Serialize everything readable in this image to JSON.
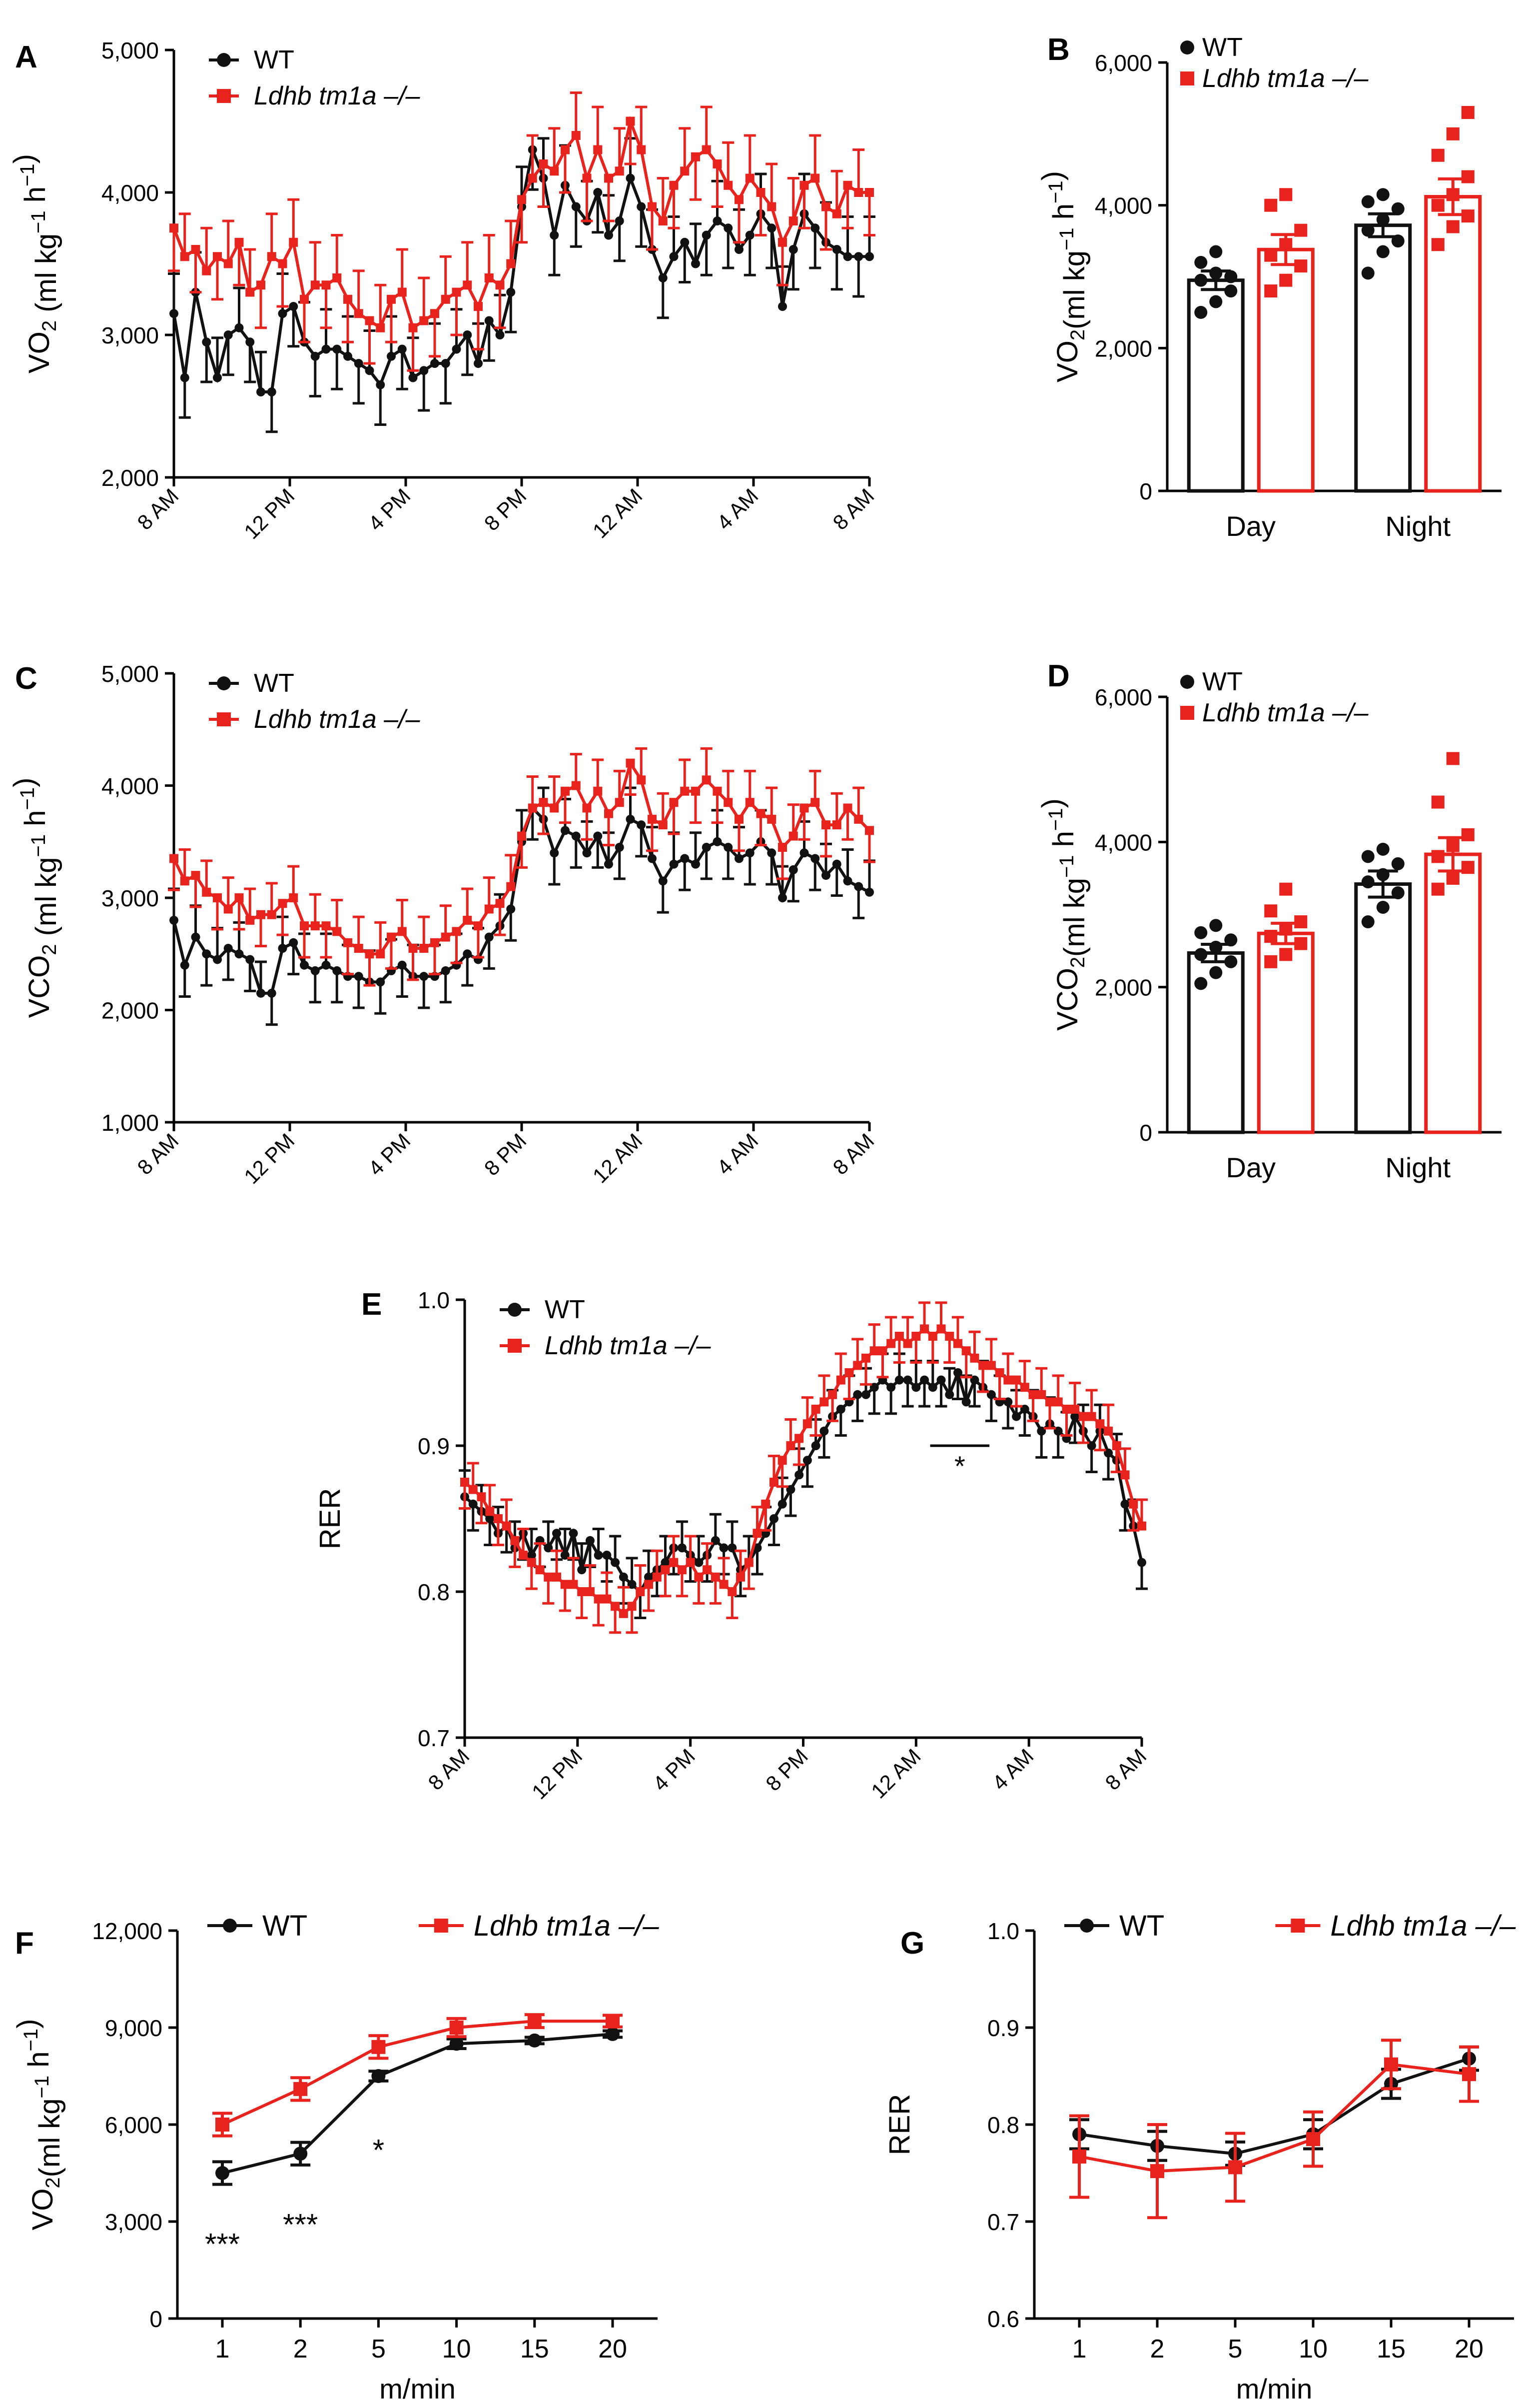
{
  "colors": {
    "wt": "#111111",
    "ko": "#e8221c",
    "axis": "#000000"
  },
  "legend": {
    "wt": "WT",
    "ko": "Ldhb tm1a –/–"
  },
  "time_ticks": [
    "8 AM",
    "12 PM",
    "4 PM",
    "8 PM",
    "12 AM",
    "4 AM",
    "8 AM"
  ],
  "chart_data": [
    {
      "panel": "A",
      "type": "line",
      "ylabel": "VO2 (ml kg−1 h−1)",
      "ylim": [
        2000,
        5000
      ],
      "yticks": [
        2000,
        3000,
        4000,
        5000
      ],
      "x_unit": "hours from 8 AM",
      "xlim": [
        0,
        24
      ],
      "series": [
        {
          "name": "WT",
          "key": "wt",
          "err": 280,
          "values": [
            3150,
            2700,
            3300,
            2950,
            2700,
            3000,
            3050,
            2950,
            2600,
            2600,
            3150,
            3200,
            2950,
            2850,
            2900,
            2900,
            2850,
            2800,
            2750,
            2650,
            2850,
            2900,
            2700,
            2750,
            2800,
            2800,
            2900,
            3000,
            2800,
            3100,
            3000,
            3300,
            3900,
            4300,
            4100,
            3700,
            4050,
            3900,
            3800,
            4000,
            3700,
            3800,
            4100,
            3900,
            3600,
            3400,
            3550,
            3650,
            3500,
            3700,
            3800,
            3750,
            3600,
            3700,
            3850,
            3750,
            3200,
            3600,
            3850,
            3750,
            3650,
            3600,
            3550,
            3550,
            3550
          ]
        },
        {
          "name": "Ldhb tm1a –/–",
          "key": "ko",
          "err": 300,
          "values": [
            3750,
            3550,
            3600,
            3450,
            3550,
            3500,
            3650,
            3300,
            3350,
            3550,
            3500,
            3650,
            3250,
            3350,
            3350,
            3400,
            3250,
            3150,
            3100,
            3050,
            3250,
            3300,
            3050,
            3100,
            3150,
            3250,
            3300,
            3350,
            3200,
            3400,
            3350,
            3500,
            3950,
            4100,
            4200,
            4150,
            4300,
            4400,
            4100,
            4300,
            4100,
            4150,
            4500,
            4300,
            3900,
            3800,
            4050,
            4150,
            4250,
            4300,
            4200,
            4050,
            3950,
            4100,
            4000,
            3900,
            3650,
            3800,
            4050,
            4100,
            3900,
            3850,
            4050,
            4000,
            4000
          ]
        }
      ]
    },
    {
      "panel": "B",
      "type": "bar",
      "ylabel": "VO2(ml kg−1 h−1)",
      "ylim": [
        0,
        6000
      ],
      "yticks": [
        0,
        2000,
        4000,
        6000
      ],
      "categories": [
        "Day",
        "Night"
      ],
      "series": [
        {
          "name": "WT",
          "key": "wt",
          "values": [
            2950,
            3720
          ],
          "sem": [
            130,
            160
          ],
          "points": [
            [
              2500,
              2650,
              2800,
              2950,
              3050,
              3000,
              3200,
              3350
            ],
            [
              3050,
              3350,
              3500,
              3650,
              3800,
              3950,
              4050,
              4150
            ]
          ]
        },
        {
          "name": "Ldhb tm1a –/–",
          "key": "ko",
          "values": [
            3380,
            4120
          ],
          "sem": [
            210,
            250
          ],
          "points": [
            [
              2800,
              2950,
              3150,
              3300,
              3450,
              3650,
              4000,
              4150
            ],
            [
              3450,
              3700,
              3850,
              4000,
              4150,
              4400,
              4700,
              5000,
              5300
            ]
          ]
        }
      ]
    },
    {
      "panel": "C",
      "type": "line",
      "ylabel": "VCO2 (ml kg−1 h−1)",
      "ylim": [
        1000,
        5000
      ],
      "yticks": [
        1000,
        2000,
        3000,
        4000,
        5000
      ],
      "x_unit": "hours from 8 AM",
      "xlim": [
        0,
        24
      ],
      "series": [
        {
          "name": "WT",
          "key": "wt",
          "err": 280,
          "values": [
            2800,
            2400,
            2650,
            2500,
            2450,
            2550,
            2500,
            2450,
            2150,
            2150,
            2550,
            2600,
            2400,
            2350,
            2400,
            2350,
            2300,
            2300,
            2250,
            2250,
            2350,
            2400,
            2300,
            2300,
            2300,
            2350,
            2400,
            2500,
            2450,
            2650,
            2750,
            2900,
            3500,
            3800,
            3700,
            3400,
            3600,
            3550,
            3400,
            3550,
            3300,
            3450,
            3700,
            3650,
            3350,
            3150,
            3300,
            3350,
            3300,
            3450,
            3500,
            3450,
            3350,
            3400,
            3500,
            3400,
            3000,
            3250,
            3400,
            3350,
            3200,
            3300,
            3150,
            3100,
            3050
          ]
        },
        {
          "name": "Ldhb tm1a –/–",
          "key": "ko",
          "err": 280,
          "values": [
            3350,
            3150,
            3200,
            3050,
            3000,
            2900,
            3000,
            2800,
            2850,
            2850,
            2950,
            3000,
            2750,
            2750,
            2750,
            2700,
            2600,
            2550,
            2500,
            2500,
            2650,
            2700,
            2550,
            2550,
            2600,
            2650,
            2700,
            2800,
            2750,
            2900,
            2950,
            3100,
            3550,
            3800,
            3850,
            3800,
            3950,
            4000,
            3800,
            3950,
            3750,
            3850,
            4200,
            4050,
            3700,
            3650,
            3850,
            3950,
            3950,
            4050,
            3950,
            3850,
            3700,
            3850,
            3750,
            3700,
            3450,
            3550,
            3800,
            3850,
            3650,
            3650,
            3800,
            3700,
            3600
          ]
        }
      ]
    },
    {
      "panel": "D",
      "type": "bar",
      "ylabel": "VCO2(ml kg−1 h−1)",
      "ylim": [
        0,
        6000
      ],
      "yticks": [
        0,
        2000,
        4000,
        6000
      ],
      "categories": [
        "Day",
        "Night"
      ],
      "series": [
        {
          "name": "WT",
          "key": "wt",
          "values": [
            2470,
            3420
          ],
          "sem": [
            120,
            180
          ],
          "points": [
            [
              2050,
              2200,
              2350,
              2450,
              2550,
              2650,
              2750,
              2850
            ],
            [
              2900,
              3100,
              3300,
              3450,
              3550,
              3700,
              3800,
              3900
            ]
          ]
        },
        {
          "name": "Ldhb tm1a –/–",
          "key": "ko",
          "values": [
            2740,
            3830
          ],
          "sem": [
            140,
            230
          ],
          "points": [
            [
              2350,
              2450,
              2600,
              2700,
              2800,
              2900,
              3050,
              3350
            ],
            [
              3350,
              3500,
              3650,
              3800,
              3950,
              4100,
              4550,
              5150
            ]
          ]
        }
      ]
    },
    {
      "panel": "E",
      "type": "line",
      "ylabel": "RER",
      "ylim": [
        0.7,
        1.0
      ],
      "yticks": [
        0.7,
        0.8,
        0.9,
        1.0
      ],
      "x_unit": "hours from 8 AM",
      "xlim": [
        0,
        24
      ],
      "annotation": {
        "text": "*",
        "x_start": 16.5,
        "x_end": 18.6,
        "y": 0.9
      },
      "series": [
        {
          "name": "WT",
          "key": "wt",
          "err": 0.018,
          "values": [
            0.865,
            0.86,
            0.855,
            0.85,
            0.84,
            0.845,
            0.83,
            0.84,
            0.825,
            0.835,
            0.83,
            0.84,
            0.825,
            0.84,
            0.815,
            0.835,
            0.825,
            0.825,
            0.82,
            0.81,
            0.805,
            0.8,
            0.81,
            0.815,
            0.82,
            0.83,
            0.83,
            0.825,
            0.82,
            0.825,
            0.835,
            0.83,
            0.83,
            0.815,
            0.82,
            0.83,
            0.84,
            0.85,
            0.86,
            0.87,
            0.88,
            0.89,
            0.9,
            0.91,
            0.92,
            0.925,
            0.93,
            0.935,
            0.935,
            0.94,
            0.945,
            0.94,
            0.945,
            0.945,
            0.94,
            0.945,
            0.94,
            0.945,
            0.935,
            0.95,
            0.93,
            0.945,
            0.94,
            0.935,
            0.93,
            0.93,
            0.92,
            0.925,
            0.92,
            0.91,
            0.915,
            0.91,
            0.905,
            0.92,
            0.91,
            0.9,
            0.91,
            0.895,
            0.89,
            0.86,
            0.845,
            0.82
          ]
        },
        {
          "name": "Ldhb tm1a –/–",
          "key": "ko",
          "err": 0.018,
          "values": [
            0.875,
            0.87,
            0.865,
            0.855,
            0.85,
            0.845,
            0.835,
            0.825,
            0.82,
            0.815,
            0.81,
            0.81,
            0.805,
            0.805,
            0.8,
            0.8,
            0.795,
            0.795,
            0.79,
            0.785,
            0.79,
            0.8,
            0.805,
            0.81,
            0.815,
            0.82,
            0.815,
            0.82,
            0.81,
            0.815,
            0.81,
            0.805,
            0.8,
            0.81,
            0.82,
            0.84,
            0.86,
            0.875,
            0.89,
            0.9,
            0.905,
            0.915,
            0.925,
            0.93,
            0.935,
            0.945,
            0.95,
            0.955,
            0.96,
            0.965,
            0.965,
            0.97,
            0.975,
            0.97,
            0.975,
            0.98,
            0.975,
            0.98,
            0.975,
            0.97,
            0.965,
            0.96,
            0.955,
            0.955,
            0.95,
            0.945,
            0.945,
            0.94,
            0.935,
            0.935,
            0.93,
            0.93,
            0.925,
            0.925,
            0.92,
            0.92,
            0.915,
            0.91,
            0.9,
            0.88,
            0.86,
            0.845
          ]
        }
      ]
    },
    {
      "panel": "F",
      "type": "line",
      "ylabel": "VO2(ml kg−1 h−1)",
      "xlabel": "m/min",
      "ylim": [
        0,
        12000
      ],
      "yticks": [
        0,
        3000,
        6000,
        9000,
        12000
      ],
      "categories": [
        "1",
        "2",
        "5",
        "10",
        "15",
        "20"
      ],
      "annotations": [
        {
          "text": "***",
          "index": 0,
          "y": 2300
        },
        {
          "text": "***",
          "index": 1,
          "y": 2900
        },
        {
          "text": "*",
          "index": 2,
          "y": 5200
        }
      ],
      "series": [
        {
          "name": "WT",
          "key": "wt",
          "values": [
            4500,
            5100,
            7500,
            8500,
            8600,
            8800
          ],
          "err": [
            350,
            350,
            150,
            150,
            100,
            100
          ]
        },
        {
          "name": "Ldhb tm1a –/–",
          "key": "ko",
          "values": [
            6000,
            7100,
            8400,
            9000,
            9200,
            9200
          ],
          "err": [
            350,
            350,
            350,
            280,
            200,
            180
          ]
        }
      ]
    },
    {
      "panel": "G",
      "type": "line",
      "ylabel": "RER",
      "xlabel": "m/min",
      "ylim": [
        0.6,
        1.0
      ],
      "yticks": [
        0.6,
        0.7,
        0.8,
        0.9,
        1.0
      ],
      "categories": [
        "1",
        "2",
        "5",
        "10",
        "15",
        "20"
      ],
      "series": [
        {
          "name": "WT",
          "key": "wt",
          "values": [
            0.79,
            0.778,
            0.77,
            0.79,
            0.842,
            0.868
          ],
          "err": [
            0.015,
            0.015,
            0.012,
            0.015,
            0.015,
            0.012
          ]
        },
        {
          "name": "Ldhb tm1a –/–",
          "key": "ko",
          "values": [
            0.767,
            0.752,
            0.756,
            0.785,
            0.862,
            0.852
          ],
          "err": [
            0.042,
            0.048,
            0.035,
            0.028,
            0.025,
            0.028
          ]
        }
      ]
    }
  ]
}
